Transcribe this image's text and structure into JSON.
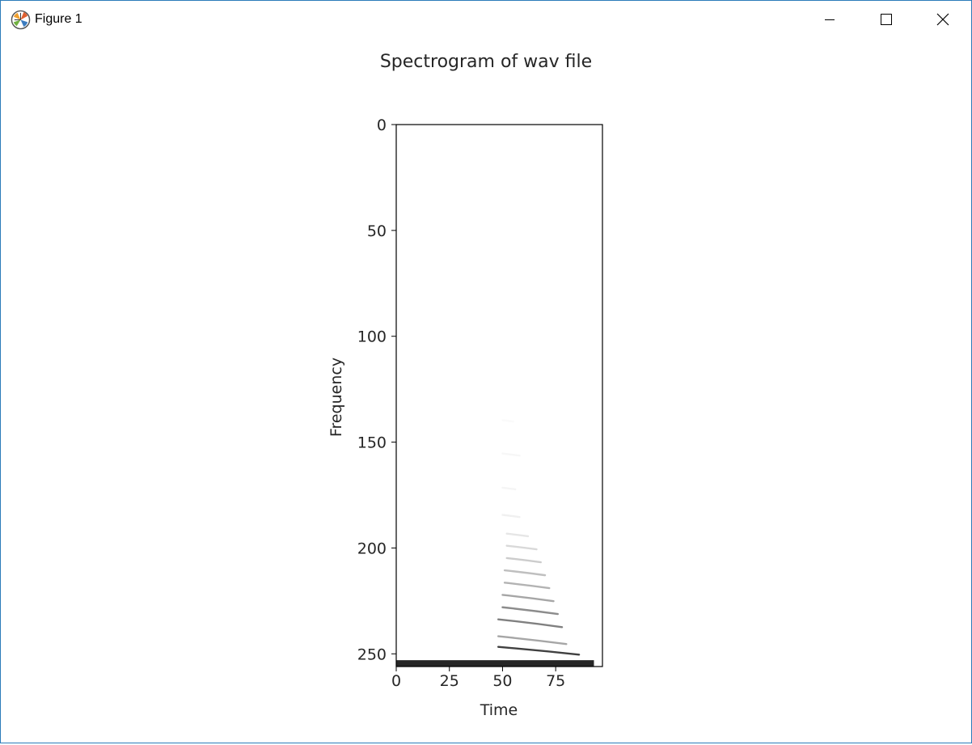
{
  "window": {
    "title": "Figure 1",
    "icon": "matplotlib-logo-icon",
    "controls": [
      "minimize-icon",
      "maximize-icon",
      "close-icon"
    ]
  },
  "chart_data": {
    "type": "heatmap",
    "title": "Spectrogram of wav file",
    "xlabel": "Time",
    "ylabel": "Frequency",
    "xlim": [
      0,
      97
    ],
    "ylim": [
      256,
      0
    ],
    "y_inverted": true,
    "xticks": [
      0,
      25,
      50,
      75
    ],
    "yticks": [
      0,
      50,
      100,
      150,
      200,
      250
    ],
    "colormap": "Greys",
    "grid": false,
    "features": {
      "baseline_band": {
        "time": [
          0,
          93
        ],
        "frequency": [
          253,
          256
        ],
        "intensity": 0.85
      },
      "onset_time": 48,
      "harmonic_bands": [
        {
          "frequency": 249,
          "time": [
            48,
            86
          ],
          "intensity": 0.75
        },
        {
          "frequency": 244,
          "time": [
            48,
            80
          ],
          "intensity": 0.35
        },
        {
          "frequency": 236,
          "time": [
            48,
            78
          ],
          "intensity": 0.5
        },
        {
          "frequency": 230,
          "time": [
            50,
            76
          ],
          "intensity": 0.45
        },
        {
          "frequency": 224,
          "time": [
            50,
            74
          ],
          "intensity": 0.35
        },
        {
          "frequency": 218,
          "time": [
            51,
            72
          ],
          "intensity": 0.3
        },
        {
          "frequency": 212,
          "time": [
            51,
            70
          ],
          "intensity": 0.25
        },
        {
          "frequency": 206,
          "time": [
            52,
            68
          ],
          "intensity": 0.2
        },
        {
          "frequency": 200,
          "time": [
            52,
            66
          ],
          "intensity": 0.15
        },
        {
          "frequency": 194,
          "time": [
            52,
            62
          ],
          "intensity": 0.1
        },
        {
          "frequency": 185,
          "time": [
            50,
            58
          ],
          "intensity": 0.06
        },
        {
          "frequency": 172,
          "time": [
            50,
            56
          ],
          "intensity": 0.04
        },
        {
          "frequency": 156,
          "time": [
            50,
            58
          ],
          "intensity": 0.03
        },
        {
          "frequency": 140,
          "time": [
            50,
            55
          ],
          "intensity": 0.02
        }
      ]
    }
  }
}
